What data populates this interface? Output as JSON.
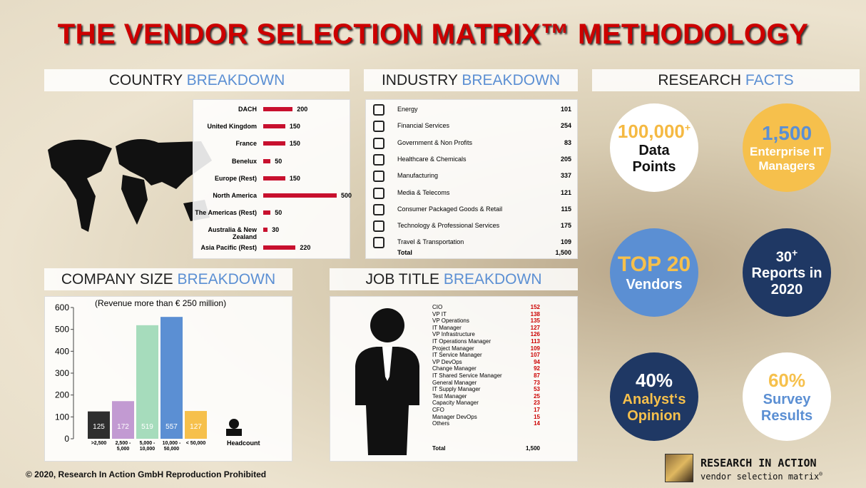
{
  "title": "THE VENDOR SELECTION MATRIX™ METHODOLOGY",
  "country": {
    "heading": [
      "COUNTRY",
      "BREAKDOWN"
    ]
  },
  "industry": {
    "heading": [
      "INDUSTRY",
      "BREAKDOWN"
    ],
    "rows": [
      [
        "Energy",
        "101"
      ],
      [
        "Financial Services",
        "254"
      ],
      [
        "Government & Non Profits",
        "83"
      ],
      [
        "Healthcare & Chemicals",
        "205"
      ],
      [
        "Manufacturing",
        "337"
      ],
      [
        "Media & Telecoms",
        "121"
      ],
      [
        "Consumer Packaged Goods & Retail",
        "115"
      ],
      [
        "Technology & Professional Services",
        "175"
      ],
      [
        "Travel & Transportation",
        "109"
      ]
    ],
    "total": [
      "Total",
      "1,500"
    ]
  },
  "company": {
    "heading": [
      "COMPANY SIZE",
      "BREAKDOWN"
    ]
  },
  "job": {
    "heading": [
      "JOB TITLE",
      "BREAKDOWN"
    ],
    "rows": [
      [
        "CIO",
        "152"
      ],
      [
        "VP IT",
        "138"
      ],
      [
        "VP Operations",
        "135"
      ],
      [
        "IT Manager",
        "127"
      ],
      [
        "VP Infrastructure",
        "126"
      ],
      [
        "IT Operations Manager",
        "113"
      ],
      [
        "Project Manager",
        "109"
      ],
      [
        "IT Service Manager",
        "107"
      ],
      [
        "VP DevOps",
        "94"
      ],
      [
        "Change Manager",
        "92"
      ],
      [
        "IT Shared Service Manager",
        "87"
      ],
      [
        "General Manager",
        "73"
      ],
      [
        "IT Supply Manager",
        "53"
      ],
      [
        "Test Manager",
        "25"
      ],
      [
        "Capacity Manager",
        "23"
      ],
      [
        "CFO",
        "17"
      ],
      [
        "Manager DevOps",
        "15"
      ],
      [
        "Others",
        "14"
      ]
    ],
    "total": [
      "Total",
      "1,500"
    ]
  },
  "facts": {
    "heading": [
      "RESEARCH",
      "FACTS"
    ],
    "items": [
      {
        "value": "100,000",
        "sup": "+",
        "label": "Data Points"
      },
      {
        "value": "1,500",
        "label": "Enterprise IT Managers"
      },
      {
        "value": "TOP 20",
        "label": "Vendors"
      },
      {
        "value": "30",
        "sup": "+",
        "label": "Reports in 2020"
      },
      {
        "value": "40%",
        "label": "Analyst‘s Opinion"
      },
      {
        "value": "60%",
        "label": "Survey Results"
      }
    ]
  },
  "chart_data": [
    {
      "type": "hbar",
      "color": "#c8102e",
      "categories": [
        "DACH",
        "United Kingdom",
        "France",
        "Benelux",
        "Europe (Rest)",
        "North America",
        "The Americas (Rest)",
        "Australia & New Zealand",
        "Asia Pacific (Rest)"
      ],
      "values": [
        200,
        150,
        150,
        50,
        150,
        500,
        50,
        30,
        220
      ]
    },
    {
      "type": "bar",
      "subtitle": "(Revenue more than € 250 million)",
      "x_label": "Headcount",
      "categories": [
        ">2,500",
        "2,500 - 5,000",
        "5,000 - 10,000",
        "10,000 - 50,000",
        "< 50,000"
      ],
      "values": [
        125,
        172,
        519,
        557,
        127
      ],
      "colors": [
        "#2e2e2e",
        "#c29ad2",
        "#a6dcbc",
        "#5b8fd3",
        "#f6c04c"
      ],
      "ylim": [
        0,
        600
      ],
      "yticks": [
        0,
        100,
        200,
        300,
        400,
        500,
        600
      ]
    }
  ],
  "footer": {
    "copyright": "© 2020, Research In Action GmbH Reproduction Prohibited",
    "logo": "RESEARCH IN ACTION",
    "logo_sub": "vendor selection matrix",
    "logo_mark": "®"
  }
}
